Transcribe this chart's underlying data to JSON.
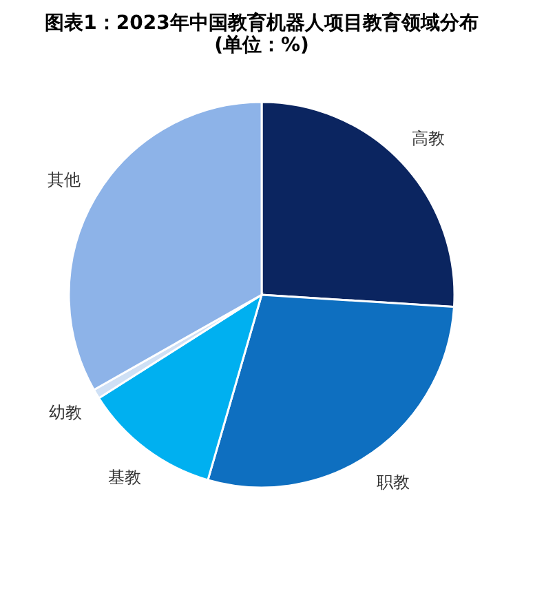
{
  "chart_data": {
    "type": "pie",
    "title": [
      "图表1：2023年中国教育机器人项目教育领域分布",
      "(单位：%)"
    ],
    "categories": [
      "高教",
      "职教",
      "基教",
      "幼教",
      "其他"
    ],
    "values": [
      26,
      28.5,
      11.5,
      0.8,
      33.2
    ],
    "colors": [
      "#0b2560",
      "#0e6fc0",
      "#00b0f0",
      "#cfe0f5",
      "#8db3e8"
    ],
    "legend": false
  }
}
